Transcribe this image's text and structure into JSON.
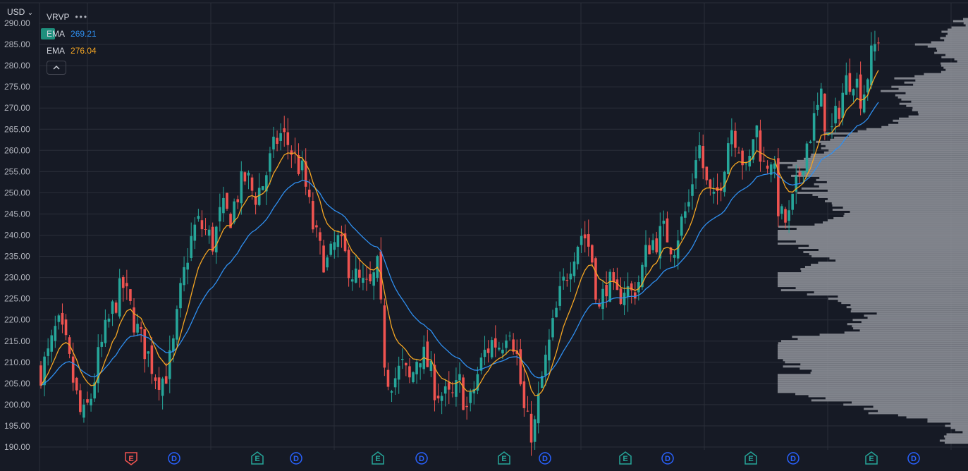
{
  "header": {
    "currency": "USD",
    "currency_caret": "⌄",
    "indicator_name": "VRVP",
    "indicator_menu": "•••"
  },
  "legend": [
    {
      "name": "EMA",
      "value": "269.21",
      "color": "#2f8ff0"
    },
    {
      "name": "EMA",
      "value": "276.04",
      "color": "#f5a623"
    }
  ],
  "legend_collapse_icon": "^",
  "colors": {
    "background": "#161a25",
    "grid": "#2a2e39",
    "up": "#26a69a",
    "down": "#ef5350",
    "ema_fast": "#f5a623",
    "ema_slow": "#2f8ff0",
    "volume_profile": "#8c8f97",
    "earnings_down": "#ef5350",
    "earnings_up": "#26a69a",
    "dividend": "#2962ff"
  },
  "chart_data": {
    "type": "candlestick",
    "y_axis": {
      "range": [
        188,
        292
      ],
      "ticks": [
        "190.00",
        "195.00",
        "200.00",
        "205.00",
        "210.00",
        "215.00",
        "220.00",
        "225.00",
        "230.00",
        "235.00",
        "240.00",
        "245.00",
        "250.00",
        "255.00",
        "260.00",
        "265.00",
        "270.00",
        "275.00",
        "280.00",
        "285.00",
        "290.00"
      ]
    },
    "close_path": [
      208,
      212,
      219,
      214,
      205,
      196,
      201,
      211,
      218,
      224,
      228,
      222,
      216,
      212,
      207,
      206,
      212,
      226,
      237,
      243,
      241,
      238,
      246,
      244,
      250,
      254,
      249,
      252,
      258,
      264,
      262,
      258,
      254,
      243,
      236,
      233,
      239,
      235,
      231,
      228,
      227,
      232,
      207,
      206,
      209,
      205,
      213,
      210,
      204,
      202,
      201,
      205,
      198,
      206,
      212,
      215,
      214,
      220,
      211,
      196,
      193,
      206,
      215,
      224,
      231,
      237,
      241,
      236,
      222,
      230,
      224,
      228,
      226,
      230,
      238,
      239,
      241,
      237,
      243,
      248,
      263,
      252,
      247,
      255,
      266,
      262,
      253,
      267,
      256,
      259,
      244,
      243,
      251,
      260,
      266,
      272,
      262,
      269,
      276,
      278,
      272,
      281,
      287
    ],
    "ema_fast_final": 276.04,
    "ema_slow_final": 269.21,
    "markers": [
      {
        "type": "E",
        "kind": "earnings",
        "direction": "down"
      },
      {
        "type": "D",
        "kind": "dividend"
      },
      {
        "type": "E",
        "kind": "earnings",
        "direction": "up"
      },
      {
        "type": "D",
        "kind": "dividend"
      },
      {
        "type": "E",
        "kind": "earnings",
        "direction": "up"
      },
      {
        "type": "D",
        "kind": "dividend"
      },
      {
        "type": "E",
        "kind": "earnings",
        "direction": "up"
      },
      {
        "type": "D",
        "kind": "dividend"
      },
      {
        "type": "E",
        "kind": "earnings",
        "direction": "up"
      },
      {
        "type": "D",
        "kind": "dividend"
      },
      {
        "type": "E",
        "kind": "earnings",
        "direction": "up"
      },
      {
        "type": "D",
        "kind": "dividend"
      },
      {
        "type": "E",
        "kind": "earnings",
        "direction": "up"
      },
      {
        "type": "D",
        "kind": "dividend"
      }
    ]
  }
}
